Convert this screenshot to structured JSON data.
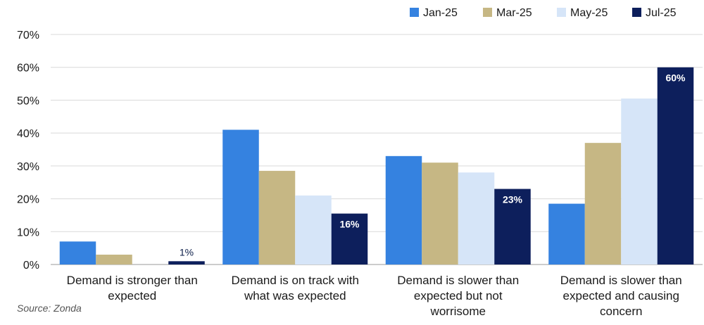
{
  "chart_data": {
    "type": "bar",
    "categories": [
      [
        "Demand is stronger than",
        "expected"
      ],
      [
        "Demand is on track with",
        "what was expected"
      ],
      [
        "Demand is slower than",
        "expected but not",
        "worrisome"
      ],
      [
        "Demand is slower than",
        "expected and causing",
        "concern"
      ]
    ],
    "series": [
      {
        "name": "Jan-25",
        "color": "#3582e0",
        "values": [
          7,
          41,
          33,
          18.5
        ]
      },
      {
        "name": "Mar-25",
        "color": "#c6b784",
        "values": [
          3,
          28.5,
          31,
          37
        ]
      },
      {
        "name": "May-25",
        "color": "#d6e5f8",
        "values": [
          0,
          21,
          28,
          50.5
        ]
      },
      {
        "name": "Jul-25",
        "color": "#0d1f5c",
        "values": [
          1,
          15.5,
          23,
          60
        ]
      }
    ],
    "data_labels": {
      "series": "Jul-25",
      "labels": [
        "1%",
        "16%",
        "23%",
        "60%"
      ]
    },
    "y_ticks": [
      "0%",
      "10%",
      "20%",
      "30%",
      "40%",
      "50%",
      "60%",
      "70%"
    ],
    "ylim": [
      0,
      70
    ],
    "legend_position": "top-right",
    "grid": true,
    "source": "Source: Zonda"
  }
}
